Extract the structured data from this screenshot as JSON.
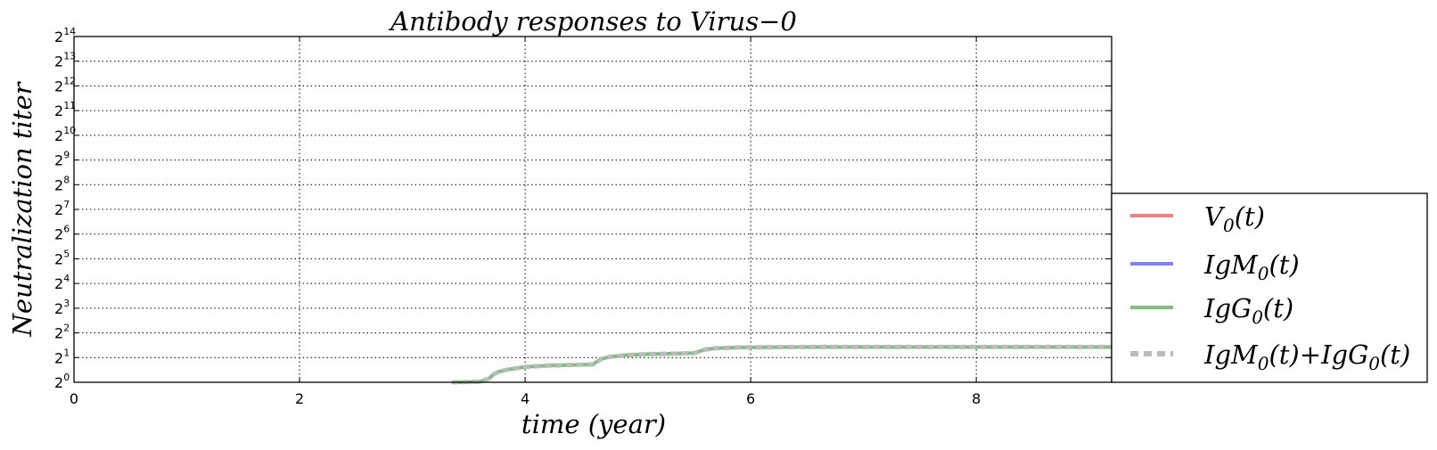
{
  "chart_data": {
    "type": "line",
    "title": "Antibody responses to Virus−0",
    "xlabel": "time (year)",
    "ylabel": "Neutralization  titer",
    "xlim": [
      0,
      9.2
    ],
    "ylim_log2": [
      0,
      14
    ],
    "y_scale": "log2",
    "grid": true,
    "legend_position": "lower right, outside plot",
    "x_ticks": [
      {
        "value": 0,
        "label": "0"
      },
      {
        "value": 2,
        "label": "2"
      },
      {
        "value": 4,
        "label": "4"
      },
      {
        "value": 6,
        "label": "6"
      },
      {
        "value": 8,
        "label": "8"
      }
    ],
    "y_ticks": [
      {
        "exp": 0,
        "base": "2",
        "sup": "0"
      },
      {
        "exp": 1,
        "base": "2",
        "sup": "1"
      },
      {
        "exp": 2,
        "base": "2",
        "sup": "2"
      },
      {
        "exp": 3,
        "base": "2",
        "sup": "3"
      },
      {
        "exp": 4,
        "base": "2",
        "sup": "4"
      },
      {
        "exp": 5,
        "base": "2",
        "sup": "5"
      },
      {
        "exp": 6,
        "base": "2",
        "sup": "6"
      },
      {
        "exp": 7,
        "base": "2",
        "sup": "7"
      },
      {
        "exp": 8,
        "base": "2",
        "sup": "8"
      },
      {
        "exp": 9,
        "base": "2",
        "sup": "9"
      },
      {
        "exp": 10,
        "base": "2",
        "sup": "10"
      },
      {
        "exp": 11,
        "base": "2",
        "sup": "11"
      },
      {
        "exp": 12,
        "base": "2",
        "sup": "12"
      },
      {
        "exp": 13,
        "base": "2",
        "sup": "13"
      },
      {
        "exp": 14,
        "base": "2",
        "sup": "14"
      }
    ],
    "series": [
      {
        "name": "V0(t)",
        "color": "#f08080",
        "style": "solid",
        "x": [],
        "y_log2": []
      },
      {
        "name": "IgM0(t)",
        "color": "#7f7fff",
        "style": "solid",
        "x": [],
        "y_log2": []
      },
      {
        "name": "IgG0(t)",
        "color": "#7fbf7f",
        "style": "solid",
        "x": [
          3.35,
          3.6,
          3.68,
          3.72,
          3.76,
          3.85,
          4.0,
          4.2,
          4.4,
          4.6,
          4.63,
          4.68,
          4.75,
          4.9,
          5.1,
          5.3,
          5.5,
          5.55,
          5.6,
          5.7,
          5.9,
          6.2,
          6.6,
          7.0,
          7.5,
          8.0,
          8.5,
          9.2
        ],
        "y_log2": [
          0.0,
          0.02,
          0.15,
          0.32,
          0.42,
          0.52,
          0.62,
          0.68,
          0.7,
          0.72,
          0.82,
          0.95,
          1.03,
          1.1,
          1.14,
          1.16,
          1.18,
          1.26,
          1.33,
          1.38,
          1.41,
          1.42,
          1.43,
          1.43,
          1.43,
          1.43,
          1.43,
          1.43
        ]
      },
      {
        "name": "IgM0(t)+IgG0(t)",
        "color": "#bbbbbb",
        "style": "dashed",
        "x": [
          3.35,
          3.6,
          3.68,
          3.72,
          3.76,
          3.85,
          4.0,
          4.2,
          4.4,
          4.6,
          4.63,
          4.68,
          4.75,
          4.9,
          5.1,
          5.3,
          5.5,
          5.55,
          5.6,
          5.7,
          5.9,
          6.2,
          6.6,
          7.0,
          7.5,
          8.0,
          8.5,
          9.2
        ],
        "y_log2": [
          0.0,
          0.02,
          0.15,
          0.32,
          0.42,
          0.52,
          0.62,
          0.68,
          0.7,
          0.72,
          0.82,
          0.95,
          1.03,
          1.1,
          1.14,
          1.16,
          1.18,
          1.26,
          1.33,
          1.38,
          1.41,
          1.42,
          1.43,
          1.43,
          1.43,
          1.43,
          1.43,
          1.43
        ]
      }
    ],
    "legend": [
      {
        "base": "V",
        "sub": "0",
        "tail": "(t)",
        "color": "#f08080",
        "style": "solid"
      },
      {
        "base": "IgM",
        "sub": "0",
        "tail": "(t)",
        "color": "#7f7fff",
        "style": "solid"
      },
      {
        "base": "IgG",
        "sub": "0",
        "tail": "(t)",
        "color": "#7fbf7f",
        "style": "solid"
      },
      {
        "base": "IgM",
        "sub": "0",
        "tail": "(t)",
        "base2": "IgG",
        "sub2": "0",
        "tail2": "(t)",
        "join": "+",
        "color": "#bbbbbb",
        "style": "dashed"
      }
    ]
  }
}
